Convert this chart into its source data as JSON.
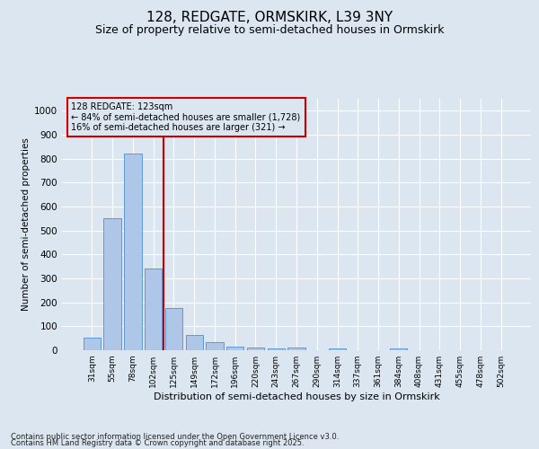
{
  "title1": "128, REDGATE, ORMSKIRK, L39 3NY",
  "title2": "Size of property relative to semi-detached houses in Ormskirk",
  "xlabel": "Distribution of semi-detached houses by size in Ormskirk",
  "ylabel": "Number of semi-detached properties",
  "categories": [
    "31sqm",
    "55sqm",
    "78sqm",
    "102sqm",
    "125sqm",
    "149sqm",
    "172sqm",
    "196sqm",
    "220sqm",
    "243sqm",
    "267sqm",
    "290sqm",
    "314sqm",
    "337sqm",
    "361sqm",
    "384sqm",
    "408sqm",
    "431sqm",
    "455sqm",
    "478sqm",
    "502sqm"
  ],
  "values": [
    52,
    550,
    820,
    340,
    175,
    65,
    33,
    15,
    12,
    8,
    10,
    0,
    8,
    0,
    0,
    8,
    0,
    0,
    0,
    0,
    0
  ],
  "bar_color": "#aec6e8",
  "bar_edge_color": "#5b9bd5",
  "vline_x": 3.5,
  "vline_color": "#cc0000",
  "annotation_title": "128 REDGATE: 123sqm",
  "annotation_line1": "← 84% of semi-detached houses are smaller (1,728)",
  "annotation_line2": "16% of semi-detached houses are larger (321) →",
  "annotation_box_color": "#cc0000",
  "ylim": [
    0,
    1050
  ],
  "yticks": [
    0,
    100,
    200,
    300,
    400,
    500,
    600,
    700,
    800,
    900,
    1000
  ],
  "background_color": "#dce6f0",
  "footer_line1": "Contains HM Land Registry data © Crown copyright and database right 2025.",
  "footer_line2": "Contains public sector information licensed under the Open Government Licence v3.0.",
  "title_fontsize": 11,
  "subtitle_fontsize": 9
}
